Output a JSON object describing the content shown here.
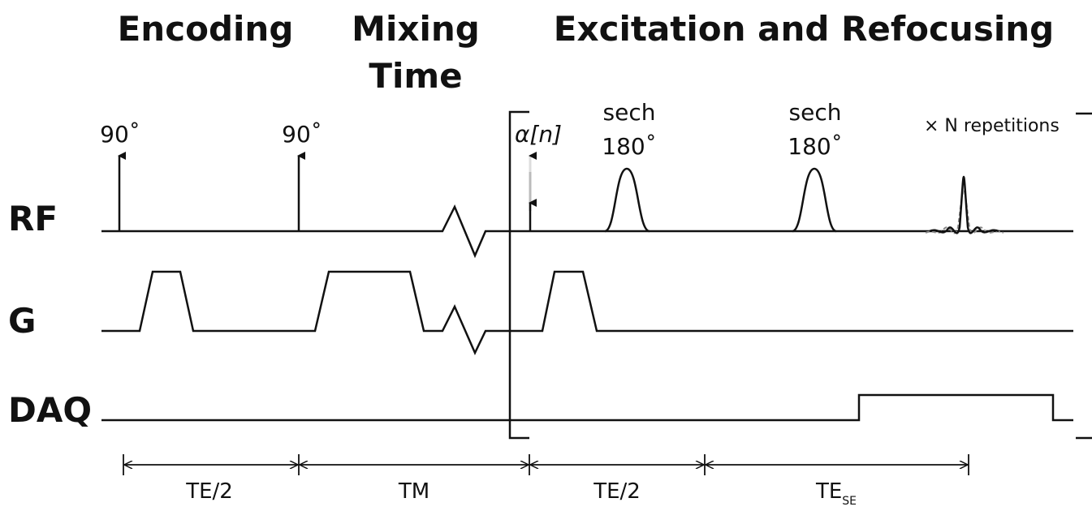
{
  "sections": {
    "encoding": "Encoding",
    "mixing": [
      "Mixing",
      "Time"
    ],
    "excitation": "Excitation and Refocusing"
  },
  "channels": [
    "RF",
    "G",
    "DAQ"
  ],
  "pulses": {
    "rf1": "90˚",
    "rf2": "90˚",
    "alpha": "α[n]",
    "sech1": [
      "sech",
      "180˚"
    ],
    "sech2": [
      "sech",
      "180˚"
    ],
    "repetitions": "× N repetitions"
  },
  "intervals": {
    "te_half_1": "TE/2",
    "tm": "TM",
    "te_half_2": "TE/2",
    "te_se": {
      "main": "TE",
      "sub": "SE"
    }
  }
}
